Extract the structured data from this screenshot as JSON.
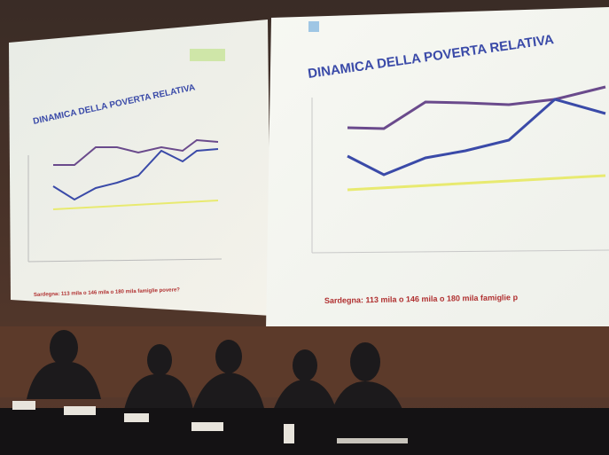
{
  "left_slide": {
    "title": "DINAMICA DELLA POVERTA RELATIVA",
    "caption": "Sardegna: 113 mila o 146 mila o 180 mila famiglie povere?"
  },
  "right_slide": {
    "title": "DINAMICA DELLA POVERTA RELATIVA",
    "caption": "Sardegna: 113 mila o 146 mila o 180 mila famiglie p"
  }
}
